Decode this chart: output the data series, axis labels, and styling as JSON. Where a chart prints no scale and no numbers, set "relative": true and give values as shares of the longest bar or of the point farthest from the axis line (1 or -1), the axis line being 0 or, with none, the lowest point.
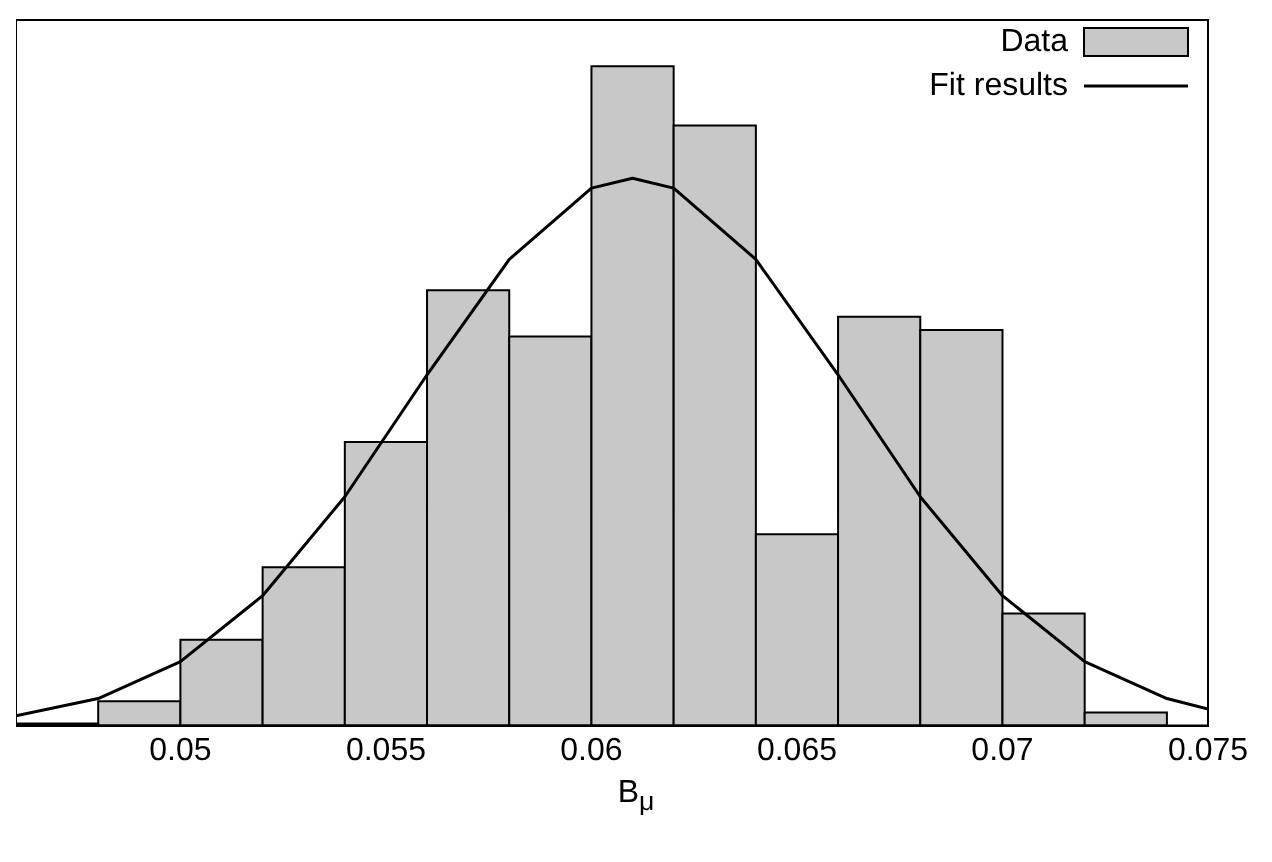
{
  "chart_data": {
    "type": "histogram",
    "xlabel": "B$_{μ}$",
    "relative": true,
    "legend": "top right",
    "xlim": [
      0.046,
      0.075
    ],
    "xticks": [
      0.05,
      0.055,
      0.06,
      0.065,
      0.07,
      0.075
    ],
    "series": [
      {
        "name": "Data",
        "color": "#c8c8c8",
        "bins": [
          0.046,
          0.048,
          0.05,
          0.052,
          0.054,
          0.056,
          0.058,
          0.06,
          0.062,
          0.064,
          0.066,
          0.068,
          0.07,
          0.072,
          0.074
        ],
        "values": [
          0.003,
          0.037,
          0.13,
          0.24,
          0.43,
          0.66,
          0.59,
          1,
          0.91,
          0.29,
          0.62,
          0.6,
          0.17,
          0.02
        ]
      },
      {
        "name": "Fit results",
        "type": "line",
        "color": "#000000",
        "x": [
          0.046,
          0.048,
          0.05,
          0.052,
          0.054,
          0.056,
          0.058,
          0.06,
          0.061,
          0.062,
          0.064,
          0.066,
          0.068,
          0.07,
          0.072,
          0.074,
          0.075
        ],
        "values": [
          0.015,
          0.041,
          0.097,
          0.197,
          0.347,
          0.532,
          0.707,
          0.815,
          0.83,
          0.815,
          0.707,
          0.532,
          0.347,
          0.197,
          0.097,
          0.041,
          0.025
        ]
      }
    ]
  }
}
